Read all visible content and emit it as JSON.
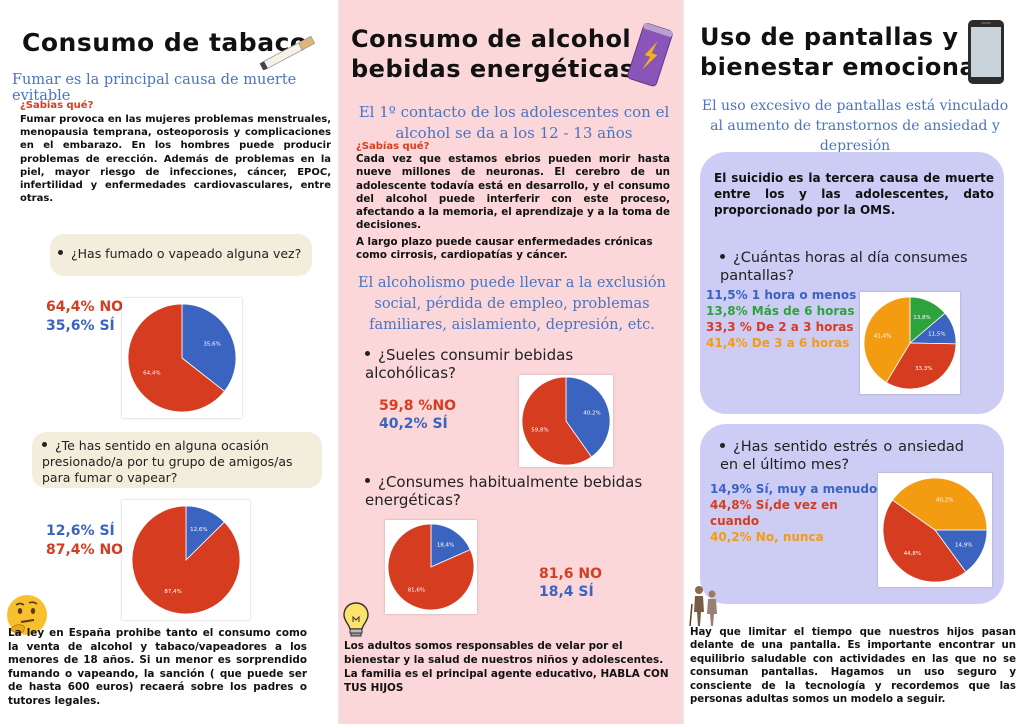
{
  "tabaco": {
    "title": "Consumo de tabaco",
    "subtitle": "Fumar es la principal causa de muerte evitable",
    "sabias_label": "¿Sabias qué?",
    "sabias_text": "Fumar provoca en las mujeres problemas menstruales, menopausia temprana, osteoporosis y complicaciones en el embarazo. En los hombres puede producir problemas de erección. Además de problemas en la piel, mayor riesgo de infecciones, cáncer, EPOC, infertilidad y enfermedades cardiovasculares, entre otras.",
    "q1": "¿Has fumado o vapeado alguna vez?",
    "q1_stat_no": "64,4% NO",
    "q1_stat_si": "35,6% SÍ",
    "q2": "¿Te has sentido en alguna ocasión presionado/a por tu grupo de amigos/as para fumar o vapear?",
    "q2_stat_si": "12,6% SÍ",
    "q2_stat_no": "87,4% NO",
    "ley": "La ley en España prohibe tanto el consumo como la venta de alcohol y tabaco/vapeadores a los menores de 18 años. Si un menor es sorprendido fumando o vapeando, la sanción ( que puede ser de hasta 600 euros) recaerá sobre los padres o tutores legales."
  },
  "alcohol": {
    "title_line1": "Consumo de alcohol y",
    "title_line2": "bebidas energéticas",
    "subtitle": "El 1º contacto de los adolescentes con el alcohol se da a los 12 - 13 años",
    "sabias_label": "¿Sabías qué?",
    "sabias_text1": "Cada vez que estamos ebrios pueden morir hasta nueve millones de neuronas. El cerebro de un adolescente todavía está en desarrollo, y el consumo del alcohol puede interferir con este proceso, afectando a la memoria, el aprendizaje y a la toma de decisiones.",
    "sabias_text2": "A largo plazo puede causar enfermedades crónicas como cirrosis, cardiopatías y cáncer.",
    "alcoholismo": "El alcoholismo puede llevar a la exclusión social, pérdida de empleo, problemas familiares, aislamiento, depresión, etc.",
    "q1": "¿Sueles consumir bebidas alcohólicas?",
    "q1_stat_no": "59,8 %NO",
    "q1_stat_si": "40,2% SÍ",
    "q2": "¿Consumes habitualmente bebidas energéticas?",
    "q2_stat_no": "81,6 NO",
    "q2_stat_si": "18,4  SÍ",
    "adultos": "Los adultos somos responsables de velar por el bienestar y la salud de nuestros niños y adolescentes.",
    "familia": "La familia es el  principal agente educativo, HABLA CON TUS HIJOS"
  },
  "pantallas": {
    "title_line1": "Uso de pantallas y",
    "title_line2": "bienestar emocional",
    "subtitle": "El uso excesivo de pantallas está vinculado al aumento de transtornos de ansiedad y depresión",
    "suicidio": "El suicidio es la tercera causa de muerte entre los y las adolescentes, dato proporcionado por la OMS.",
    "q1": "¿Cuántas horas al día consumes pantallas?",
    "q1_stat_1": "11,5% 1 hora o menos",
    "q1_stat_2": "13,8% Más de 6 horas",
    "q1_stat_3": "33,3 % De 2 a 3 horas",
    "q1_stat_4": "41,4% De 3 a 6 horas",
    "q2": "¿Has sentido estrés o ansiedad en el último mes?",
    "q2_stat_1": "14,9% Sí, muy a menudo",
    "q2_stat_2": "44,8% Sí,de vez en cuando",
    "q2_stat_3": "40,2% No, nunca",
    "limitar": "Hay que limitar el tiempo que nuestros hijos pasan delante de una pantalla. Es importante encontrar un equilibrio saludable con actividades en las que no se consuman pantallas. Hagamos un uso seguro y consciente de la tecnología y recordemos que las personas adultas somos un modelo a seguir."
  },
  "colors": {
    "red": "#d63c1f",
    "blue": "#3a64c0",
    "green": "#2ea23c",
    "orange": "#f39c12",
    "pink": "#fbd7d9",
    "lavender": "#ccccf5",
    "beige": "#f3eddc"
  },
  "chart_data": [
    {
      "type": "pie",
      "labels": [
        "NO",
        "SÍ"
      ],
      "values": [
        64.4,
        35.6
      ],
      "value_labels": [
        "64,4%",
        "35,6%"
      ],
      "colors": [
        "#d63c1f",
        "#3a64c0"
      ]
    },
    {
      "type": "pie",
      "labels": [
        "NO",
        "SÍ"
      ],
      "values": [
        87.4,
        12.6
      ],
      "value_labels": [
        "87,4%",
        "12,6%"
      ],
      "colors": [
        "#d63c1f",
        "#3a64c0"
      ]
    },
    {
      "type": "pie",
      "labels": [
        "NO",
        "SÍ"
      ],
      "values": [
        59.8,
        40.2
      ],
      "value_labels": [
        "59,8%",
        "40,2%"
      ],
      "colors": [
        "#d63c1f",
        "#3a64c0"
      ]
    },
    {
      "type": "pie",
      "labels": [
        "NO",
        "SÍ"
      ],
      "values": [
        81.6,
        18.4
      ],
      "value_labels": [
        "81,6%",
        "18,4%"
      ],
      "colors": [
        "#d63c1f",
        "#3a64c0"
      ]
    },
    {
      "type": "pie",
      "labels": [
        "1 hora o menos",
        "Más de 6 horas",
        "De 2 a 3 horas",
        "De 3 a 6 horas"
      ],
      "values": [
        11.5,
        13.8,
        33.3,
        41.4
      ],
      "value_labels": [
        "11,5%",
        "13,8%",
        "33,3%",
        "41,4%"
      ],
      "colors": [
        "#3a64c0",
        "#2ea23c",
        "#d63c1f",
        "#f39c12"
      ]
    },
    {
      "type": "pie",
      "labels": [
        "Sí, muy a menudo",
        "Sí,de vez en cuando",
        "No, nunca"
      ],
      "values": [
        14.9,
        44.8,
        40.2
      ],
      "value_labels": [
        "14,9%",
        "44,8%",
        "40,2%"
      ],
      "colors": [
        "#3a64c0",
        "#d63c1f",
        "#f39c12"
      ]
    }
  ]
}
